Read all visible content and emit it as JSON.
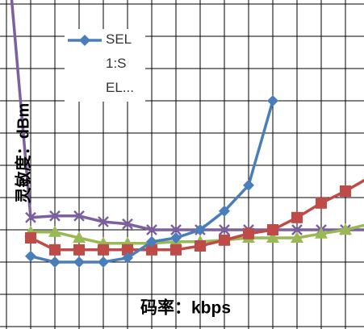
{
  "chart_data": {
    "type": "line",
    "x_label": "码率：kbps",
    "y_label": "灵敏度：dBm",
    "categories": [
      null,
      null,
      null,
      null,
      null,
      null,
      null,
      null,
      null,
      null,
      null,
      null,
      null,
      null,
      null,
      null
    ],
    "ylim": [
      0,
      10.125
    ],
    "grid": true,
    "series": [
      {
        "name": "SEL 1:S EL...",
        "color": "#4a7ebb",
        "marker": "diamond",
        "values": [
          null,
          2.18,
          2.0,
          2.0,
          2.0,
          2.13,
          2.63,
          2.75,
          3.0,
          3.58,
          4.38,
          7.0,
          null,
          null,
          null,
          null
        ]
      },
      {
        "color": "#be4b48",
        "marker": "square",
        "values": [
          null,
          2.75,
          2.38,
          2.38,
          2.38,
          2.38,
          2.38,
          2.38,
          2.5,
          2.68,
          2.88,
          3.0,
          3.38,
          3.83,
          4.2,
          4.63
        ]
      },
      {
        "color": "#98b954",
        "marker": "triangle",
        "values": [
          null,
          2.93,
          2.93,
          2.75,
          2.58,
          2.58,
          2.58,
          2.63,
          2.63,
          2.68,
          2.75,
          2.75,
          2.75,
          2.88,
          3.0,
          3.18
        ]
      },
      {
        "color": "#7d60a0",
        "marker": "x",
        "values": [
          12,
          3.38,
          3.43,
          3.43,
          3.25,
          3.18,
          3.0,
          3.0,
          3.0,
          3.0,
          3.0,
          3.0,
          3.0,
          3.0,
          3.0,
          3.0
        ]
      }
    ]
  }
}
